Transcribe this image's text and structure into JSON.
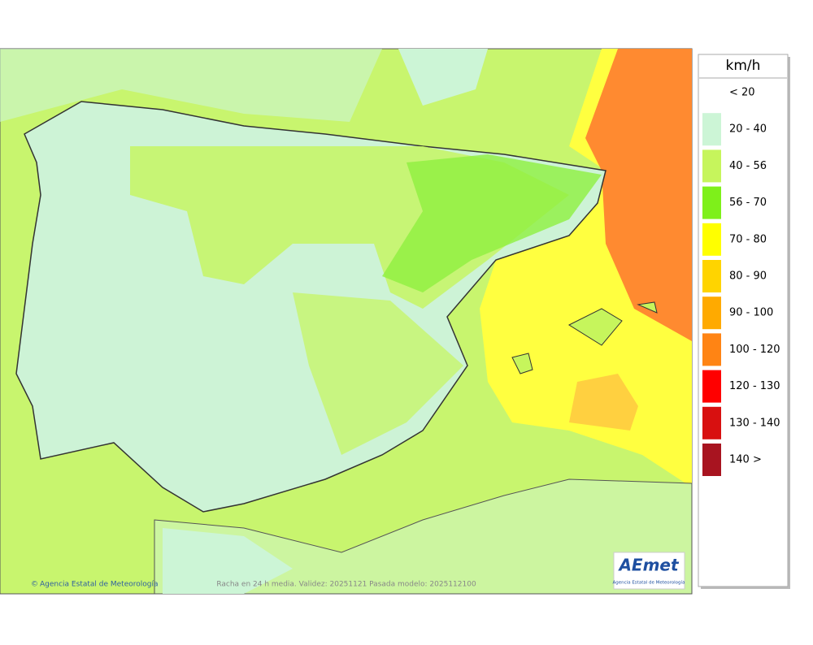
{
  "legend": {
    "unit": "km/h",
    "items": [
      {
        "label": "< 20"
      },
      {
        "label": "20 - 40",
        "color": "#ccf5d6"
      },
      {
        "label": "40 - 56",
        "color": "#c6f55c"
      },
      {
        "label": "56 - 70",
        "color": "#7ef01a"
      },
      {
        "label": "70 - 80",
        "color": "#ffff00"
      },
      {
        "label": "80 - 90",
        "color": "#ffd400"
      },
      {
        "label": "90 - 100",
        "color": "#ffaa00"
      },
      {
        "label": "100 - 120",
        "color": "#ff8414"
      },
      {
        "label": "120 - 130",
        "color": "#ff0000"
      },
      {
        "label": "130 - 140",
        "color": "#d81010"
      },
      {
        "label": "140 >",
        "color": "#a81420"
      }
    ]
  },
  "footer": {
    "credit": "Agencia Estatal de Meteorología",
    "caption": "Racha en 24 h media. Validez: 20251121 Pasada modelo: 2025112100"
  },
  "logo": {
    "text": "AEmet",
    "subtitle": "Agencia Estatal de Meteorología"
  }
}
